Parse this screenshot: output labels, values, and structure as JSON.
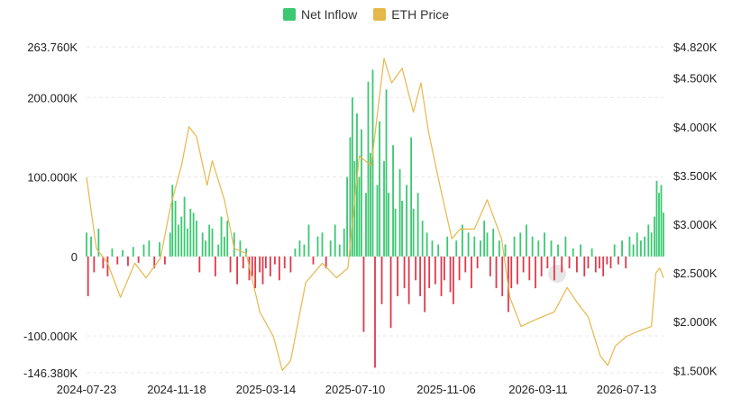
{
  "chart_data": {
    "type": "bar+line",
    "legend": [
      {
        "name": "Net Inflow",
        "color": "#3cc872"
      },
      {
        "name": "ETH Price",
        "color": "#e6b84b"
      }
    ],
    "colors": {
      "positive": "#3cc872",
      "negative": "#e0394b",
      "price": "#e6b84b",
      "grid": "#e9e9e9"
    },
    "left_axis": {
      "ticks": [
        263.76,
        200,
        100,
        0,
        -100,
        -146.38
      ],
      "tick_labels": [
        "263.760K",
        "200.000K",
        "100.000K",
        "0",
        "-100.000K",
        "-146.380K"
      ],
      "range": [
        -146.38,
        263.76
      ]
    },
    "right_axis": {
      "ticks": [
        4820,
        4500,
        4000,
        3500,
        3000,
        2500,
        2000,
        1500
      ],
      "tick_labels": [
        "$4.820K",
        "$4.500K",
        "$4.000K",
        "$3.500K",
        "$3.000K",
        "$2.500K",
        "$2.000K",
        "$1.500K"
      ],
      "range": [
        1420,
        4820
      ]
    },
    "x_axis": {
      "start": "2024-07-23",
      "end": "2026-08-28",
      "tick_labels": [
        "2024-07-23",
        "2024-11-18",
        "2025-03-14",
        "2025-07-10",
        "2025-11-06",
        "2026-03-11",
        "2026-07-13"
      ]
    },
    "price_series": {
      "name": "ETH Price",
      "points": [
        [
          "2024-07-23",
          3480
        ],
        [
          "2024-08-05",
          2750
        ],
        [
          "2024-08-20",
          2600
        ],
        [
          "2024-09-06",
          2250
        ],
        [
          "2024-09-25",
          2600
        ],
        [
          "2024-10-10",
          2450
        ],
        [
          "2024-10-29",
          2650
        ],
        [
          "2024-11-12",
          3200
        ],
        [
          "2024-11-26",
          3600
        ],
        [
          "2024-12-06",
          4000
        ],
        [
          "2024-12-16",
          3900
        ],
        [
          "2024-12-30",
          3400
        ],
        [
          "2025-01-06",
          3650
        ],
        [
          "2025-01-22",
          3250
        ],
        [
          "2025-02-04",
          2750
        ],
        [
          "2025-02-20",
          2700
        ],
        [
          "2025-03-10",
          2100
        ],
        [
          "2025-03-28",
          1850
        ],
        [
          "2025-04-09",
          1500
        ],
        [
          "2025-04-20",
          1600
        ],
        [
          "2025-05-10",
          2400
        ],
        [
          "2025-06-01",
          2600
        ],
        [
          "2025-06-20",
          2450
        ],
        [
          "2025-07-05",
          2550
        ],
        [
          "2025-07-20",
          3700
        ],
        [
          "2025-08-05",
          3600
        ],
        [
          "2025-08-22",
          4700
        ],
        [
          "2025-09-01",
          4450
        ],
        [
          "2025-09-15",
          4600
        ],
        [
          "2025-09-30",
          4150
        ],
        [
          "2025-10-10",
          4450
        ],
        [
          "2025-10-20",
          3950
        ],
        [
          "2025-11-04",
          3400
        ],
        [
          "2025-11-20",
          2850
        ],
        [
          "2025-12-01",
          2950
        ],
        [
          "2025-12-20",
          2950
        ],
        [
          "2026-01-06",
          3250
        ],
        [
          "2026-01-25",
          2850
        ],
        [
          "2026-02-05",
          2250
        ],
        [
          "2026-02-20",
          1950
        ],
        [
          "2026-03-05",
          2000
        ],
        [
          "2026-03-20",
          2050
        ],
        [
          "2026-04-05",
          2100
        ],
        [
          "2026-04-22",
          2350
        ],
        [
          "2026-05-05",
          2200
        ],
        [
          "2026-05-20",
          2050
        ],
        [
          "2026-06-05",
          1650
        ],
        [
          "2026-06-15",
          1550
        ],
        [
          "2026-06-25",
          1750
        ],
        [
          "2026-07-10",
          1850
        ],
        [
          "2026-07-25",
          1900
        ],
        [
          "2026-08-12",
          1950
        ],
        [
          "2026-08-18",
          2500
        ],
        [
          "2026-08-23",
          2550
        ],
        [
          "2026-08-28",
          2450
        ]
      ]
    },
    "inflow_series": {
      "name": "Net Inflow",
      "points": [
        [
          "2024-07-23",
          30
        ],
        [
          "2024-07-25",
          -50
        ],
        [
          "2024-07-29",
          25
        ],
        [
          "2024-08-02",
          -20
        ],
        [
          "2024-08-08",
          35
        ],
        [
          "2024-08-14",
          -15
        ],
        [
          "2024-08-20",
          -25
        ],
        [
          "2024-08-26",
          10
        ],
        [
          "2024-09-02",
          -10
        ],
        [
          "2024-09-09",
          8
        ],
        [
          "2024-09-16",
          -12
        ],
        [
          "2024-09-23",
          12
        ],
        [
          "2024-09-30",
          -8
        ],
        [
          "2024-10-07",
          15
        ],
        [
          "2024-10-14",
          20
        ],
        [
          "2024-10-21",
          -15
        ],
        [
          "2024-10-28",
          18
        ],
        [
          "2024-11-04",
          -10
        ],
        [
          "2024-11-11",
          30
        ],
        [
          "2024-11-14",
          90
        ],
        [
          "2024-11-18",
          70
        ],
        [
          "2024-11-22",
          40
        ],
        [
          "2024-11-26",
          50
        ],
        [
          "2024-11-30",
          75
        ],
        [
          "2024-12-04",
          35
        ],
        [
          "2024-12-08",
          60
        ],
        [
          "2024-12-12",
          55
        ],
        [
          "2024-12-16",
          45
        ],
        [
          "2024-12-20",
          -20
        ],
        [
          "2024-12-24",
          30
        ],
        [
          "2024-12-28",
          20
        ],
        [
          "2025-01-02",
          40
        ],
        [
          "2025-01-06",
          35
        ],
        [
          "2025-01-10",
          -25
        ],
        [
          "2025-01-14",
          15
        ],
        [
          "2025-01-18",
          50
        ],
        [
          "2025-01-22",
          25
        ],
        [
          "2025-01-26",
          45
        ],
        [
          "2025-01-30",
          -20
        ],
        [
          "2025-02-04",
          30
        ],
        [
          "2025-02-08",
          -35
        ],
        [
          "2025-02-12",
          20
        ],
        [
          "2025-02-16",
          -15
        ],
        [
          "2025-02-20",
          10
        ],
        [
          "2025-02-24",
          -30
        ],
        [
          "2025-02-28",
          -25
        ],
        [
          "2025-03-04",
          -40
        ],
        [
          "2025-03-10",
          -20
        ],
        [
          "2025-03-14",
          -35
        ],
        [
          "2025-03-18",
          -15
        ],
        [
          "2025-03-24",
          -25
        ],
        [
          "2025-03-30",
          -10
        ],
        [
          "2025-04-05",
          -30
        ],
        [
          "2025-04-12",
          -15
        ],
        [
          "2025-04-20",
          -20
        ],
        [
          "2025-04-26",
          10
        ],
        [
          "2025-05-02",
          20
        ],
        [
          "2025-05-08",
          15
        ],
        [
          "2025-05-14",
          40
        ],
        [
          "2025-05-20",
          -10
        ],
        [
          "2025-05-26",
          25
        ],
        [
          "2025-06-01",
          30
        ],
        [
          "2025-06-06",
          -15
        ],
        [
          "2025-06-12",
          20
        ],
        [
          "2025-06-18",
          40
        ],
        [
          "2025-06-24",
          15
        ],
        [
          "2025-06-30",
          35
        ],
        [
          "2025-07-04",
          100
        ],
        [
          "2025-07-08",
          150
        ],
        [
          "2025-07-11",
          200
        ],
        [
          "2025-07-14",
          120
        ],
        [
          "2025-07-17",
          180
        ],
        [
          "2025-07-20",
          100
        ],
        [
          "2025-07-23",
          160
        ],
        [
          "2025-07-26",
          -95
        ],
        [
          "2025-07-29",
          80
        ],
        [
          "2025-08-01",
          220
        ],
        [
          "2025-08-04",
          130
        ],
        [
          "2025-08-07",
          235
        ],
        [
          "2025-08-10",
          -140
        ],
        [
          "2025-08-13",
          90
        ],
        [
          "2025-08-16",
          170
        ],
        [
          "2025-08-19",
          -60
        ],
        [
          "2025-08-22",
          120
        ],
        [
          "2025-08-25",
          210
        ],
        [
          "2025-08-28",
          80
        ],
        [
          "2025-08-31",
          -90
        ],
        [
          "2025-09-03",
          140
        ],
        [
          "2025-09-06",
          60
        ],
        [
          "2025-09-09",
          -50
        ],
        [
          "2025-09-12",
          110
        ],
        [
          "2025-09-15",
          70
        ],
        [
          "2025-09-18",
          -40
        ],
        [
          "2025-09-21",
          90
        ],
        [
          "2025-09-24",
          -60
        ],
        [
          "2025-09-27",
          150
        ],
        [
          "2025-09-30",
          60
        ],
        [
          "2025-10-03",
          -30
        ],
        [
          "2025-10-06",
          80
        ],
        [
          "2025-10-09",
          -50
        ],
        [
          "2025-10-12",
          45
        ],
        [
          "2025-10-15",
          -70
        ],
        [
          "2025-10-18",
          30
        ],
        [
          "2025-10-21",
          -40
        ],
        [
          "2025-10-25",
          20
        ],
        [
          "2025-10-29",
          -35
        ],
        [
          "2025-11-02",
          15
        ],
        [
          "2025-11-06",
          -50
        ],
        [
          "2025-11-10",
          -30
        ],
        [
          "2025-11-14",
          25
        ],
        [
          "2025-11-18",
          -45
        ],
        [
          "2025-11-22",
          -60
        ],
        [
          "2025-11-26",
          20
        ],
        [
          "2025-11-30",
          -30
        ],
        [
          "2025-12-04",
          40
        ],
        [
          "2025-12-08",
          -20
        ],
        [
          "2025-12-12",
          30
        ],
        [
          "2025-12-16",
          -40
        ],
        [
          "2025-12-20",
          25
        ],
        [
          "2025-12-24",
          -15
        ],
        [
          "2025-12-28",
          20
        ],
        [
          "2026-01-02",
          45
        ],
        [
          "2026-01-06",
          30
        ],
        [
          "2026-01-10",
          -25
        ],
        [
          "2026-01-14",
          35
        ],
        [
          "2026-01-18",
          -40
        ],
        [
          "2026-01-22",
          20
        ],
        [
          "2026-01-26",
          -50
        ],
        [
          "2026-01-30",
          15
        ],
        [
          "2026-02-03",
          -70
        ],
        [
          "2026-02-07",
          -40
        ],
        [
          "2026-02-11",
          25
        ],
        [
          "2026-02-15",
          -35
        ],
        [
          "2026-02-19",
          30
        ],
        [
          "2026-02-23",
          -20
        ],
        [
          "2026-02-27",
          40
        ],
        [
          "2026-03-03",
          -30
        ],
        [
          "2026-03-07",
          25
        ],
        [
          "2026-03-11",
          -40
        ],
        [
          "2026-03-15",
          20
        ],
        [
          "2026-03-19",
          -25
        ],
        [
          "2026-03-23",
          30
        ],
        [
          "2026-03-27",
          -15
        ],
        [
          "2026-04-01",
          20
        ],
        [
          "2026-04-05",
          -30
        ],
        [
          "2026-04-10",
          15
        ],
        [
          "2026-04-15",
          -20
        ],
        [
          "2026-04-20",
          25
        ],
        [
          "2026-04-25",
          -15
        ],
        [
          "2026-04-30",
          10
        ],
        [
          "2026-05-05",
          -20
        ],
        [
          "2026-05-10",
          15
        ],
        [
          "2026-05-15",
          -25
        ],
        [
          "2026-05-20",
          -15
        ],
        [
          "2026-05-25",
          10
        ],
        [
          "2026-05-30",
          -20
        ],
        [
          "2026-06-04",
          -15
        ],
        [
          "2026-06-09",
          -25
        ],
        [
          "2026-06-14",
          -10
        ],
        [
          "2026-06-19",
          -15
        ],
        [
          "2026-06-24",
          15
        ],
        [
          "2026-06-29",
          -10
        ],
        [
          "2026-07-04",
          20
        ],
        [
          "2026-07-09",
          -15
        ],
        [
          "2026-07-14",
          25
        ],
        [
          "2026-07-19",
          15
        ],
        [
          "2026-07-24",
          30
        ],
        [
          "2026-07-29",
          20
        ],
        [
          "2026-08-03",
          25
        ],
        [
          "2026-08-08",
          40
        ],
        [
          "2026-08-12",
          30
        ],
        [
          "2026-08-16",
          50
        ],
        [
          "2026-08-19",
          95
        ],
        [
          "2026-08-22",
          80
        ],
        [
          "2026-08-25",
          90
        ],
        [
          "2026-08-28",
          55
        ]
      ]
    }
  }
}
